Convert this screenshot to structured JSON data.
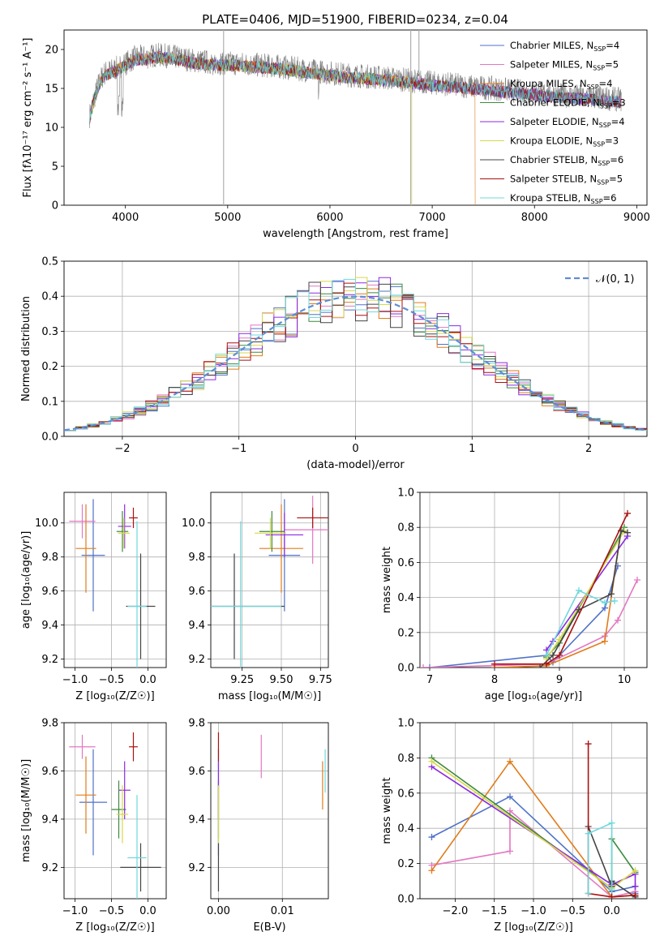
{
  "title": "PLATE=0406, MJD=51900, FIBERID=0234, z=0.04",
  "models": [
    {
      "label": "Chabrier MILES, N",
      "sub": "SSP",
      "suffix": "=4",
      "color": "#4f72c9"
    },
    {
      "label": "Salpeter MILES, N",
      "sub": "SSP",
      "suffix": "=5",
      "color": "#e377c2"
    },
    {
      "label": "Kroupa MILES, N",
      "sub": "SSP",
      "suffix": "=4",
      "color": "#e07b1a"
    },
    {
      "label": "Chabrier ELODIE, N",
      "sub": "SSP",
      "suffix": "=3",
      "color": "#3d8a3d"
    },
    {
      "label": "Salpeter ELODIE, N",
      "sub": "SSP",
      "suffix": "=4",
      "color": "#8a2be2"
    },
    {
      "label": "Kroupa ELODIE, N",
      "sub": "SSP",
      "suffix": "=3",
      "color": "#d8d84a"
    },
    {
      "label": "Chabrier STELIB, N",
      "sub": "SSP",
      "suffix": "=6",
      "color": "#444444"
    },
    {
      "label": "Salpeter STELIB, N",
      "sub": "SSP",
      "suffix": "=5",
      "color": "#aa1111"
    },
    {
      "label": "Kroupa STELIB, N",
      "sub": "SSP",
      "suffix": "=6",
      "color": "#6fd8dc"
    }
  ],
  "chart_data": [
    {
      "id": "spectrum",
      "type": "line",
      "xlabel": "wavelength [Angstrom, rest frame]",
      "ylabel": "Flux [fλ10⁻¹⁷ erg cm⁻² s⁻¹ A⁻¹]",
      "xlim": [
        3400,
        9100
      ],
      "ylim": [
        0,
        22.5
      ],
      "xticks": [
        4000,
        5000,
        6000,
        7000,
        8000,
        9000
      ],
      "yticks": [
        0,
        5,
        10,
        15,
        20
      ],
      "data_color": "#808080",
      "data_envelope": {
        "x": [
          3650,
          3700,
          3750,
          3800,
          3900,
          4000,
          4100,
          4200,
          4300,
          4400,
          4500,
          4700,
          4900,
          5100,
          5300,
          5500,
          5800,
          6000,
          6200,
          6400,
          6600,
          6800,
          7000,
          7200,
          7400,
          7600,
          7800,
          8000,
          8200,
          8400,
          8600,
          8800
        ],
        "y": [
          11.5,
          14,
          16,
          17,
          17.5,
          18.2,
          19,
          19,
          19.3,
          19.2,
          19,
          18.5,
          18.3,
          18.2,
          18,
          17.8,
          17.3,
          17,
          16.7,
          16.5,
          16.3,
          16,
          15.7,
          15.5,
          15.2,
          15,
          14.7,
          14.5,
          14.2,
          14,
          13.8,
          13.6
        ]
      },
      "model_drops": [
        {
          "model": "Kroupa MILES",
          "x_end": 7420
        },
        {
          "model": "Kroupa ELODIE",
          "x_end": 6800
        }
      ],
      "legend_position": "top-right"
    },
    {
      "id": "residuals",
      "type": "histogram",
      "xlabel": "(data-model)/error",
      "ylabel": "Normed distribution",
      "xlim": [
        -2.5,
        2.5
      ],
      "ylim": [
        0,
        0.5
      ],
      "xticks": [
        -2,
        -1,
        0,
        1,
        2
      ],
      "yticks": [
        0.0,
        0.1,
        0.2,
        0.3,
        0.4,
        0.5
      ],
      "bin_width": 0.1,
      "reference": {
        "label": "𝒩(0, 1)",
        "color": "#5f8dd3",
        "mean": 0,
        "sigma": 1
      },
      "legend_position": "top-right"
    },
    {
      "id": "age_vs_Z",
      "type": "errorbar",
      "xlabel": "Z [log₁₀(Z/Z☉)]",
      "ylabel": "age  [log₁₀(age/yr)]",
      "xlim": [
        -1.15,
        0.25
      ],
      "ylim": [
        9.15,
        10.18
      ],
      "xticks": [
        -1.0,
        -0.5,
        0.0
      ],
      "yticks": [
        9.2,
        9.4,
        9.6,
        9.8,
        10.0
      ],
      "points": [
        {
          "model": "Chabrier MILES",
          "x": -0.75,
          "xerr": 0.16,
          "y": 9.81,
          "yerr": 0.33
        },
        {
          "model": "Salpeter MILES",
          "x": -0.9,
          "xerr": 0.18,
          "y": 10.01,
          "yerr": 0.1
        },
        {
          "model": "Kroupa MILES",
          "x": -0.85,
          "xerr": 0.14,
          "y": 9.85,
          "yerr": 0.26
        },
        {
          "model": "Chabrier ELODIE",
          "x": -0.35,
          "xerr": 0.08,
          "y": 9.95,
          "yerr": 0.12
        },
        {
          "model": "Salpeter ELODIE",
          "x": -0.32,
          "xerr": 0.09,
          "y": 9.98,
          "yerr": 0.13
        },
        {
          "model": "Kroupa ELODIE",
          "x": -0.33,
          "xerr": 0.08,
          "y": 9.94,
          "yerr": 0.09
        },
        {
          "model": "Chabrier STELIB",
          "x": -0.1,
          "xerr": 0.2,
          "y": 9.51,
          "yerr": 0.31
        },
        {
          "model": "Salpeter STELIB",
          "x": -0.2,
          "xerr": 0.06,
          "y": 10.03,
          "yerr": 0.06
        },
        {
          "model": "Kroupa STELIB",
          "x": -0.15,
          "xerr": 0.13,
          "y": 9.51,
          "yerr": 0.5
        }
      ]
    },
    {
      "id": "age_vs_mass",
      "type": "errorbar",
      "xlabel": "mass [log₁₀(M/M☉)]",
      "ylabel": "",
      "xlim": [
        9.05,
        9.8
      ],
      "ylim": [
        9.15,
        10.18
      ],
      "xticks": [
        9.25,
        9.5,
        9.75
      ],
      "yticks": [
        9.2,
        9.4,
        9.6,
        9.8,
        10.0
      ],
      "points": [
        {
          "model": "Chabrier MILES",
          "x": 9.52,
          "xerr": 0.1,
          "y": 9.81,
          "yerr": 0.33
        },
        {
          "model": "Salpeter MILES",
          "x": 9.7,
          "xerr": 0.18,
          "y": 9.96,
          "yerr": 0.2
        },
        {
          "model": "Kroupa MILES",
          "x": 9.5,
          "xerr": 0.14,
          "y": 9.85,
          "yerr": 0.26
        },
        {
          "model": "Chabrier ELODIE",
          "x": 9.44,
          "xerr": 0.08,
          "y": 9.95,
          "yerr": 0.12
        },
        {
          "model": "Salpeter ELODIE",
          "x": 9.52,
          "xerr": 0.12,
          "y": 9.93,
          "yerr": 0.13
        },
        {
          "model": "Kroupa ELODIE",
          "x": 9.43,
          "xerr": 0.1,
          "y": 9.94,
          "yerr": 0.09
        },
        {
          "model": "Chabrier STELIB",
          "x": 9.2,
          "xerr": 0.32,
          "y": 9.51,
          "yerr": 0.31
        },
        {
          "model": "Salpeter STELIB",
          "x": 9.7,
          "xerr": 0.1,
          "y": 10.03,
          "yerr": 0.06
        },
        {
          "model": "Kroupa STELIB",
          "x": 9.24,
          "xerr": 0.26,
          "y": 9.51,
          "yerr": 0.5
        }
      ]
    },
    {
      "id": "weight_vs_age",
      "type": "line",
      "xlabel": "age  [log₁₀(age/yr)]",
      "ylabel": "mass weight",
      "xlim": [
        6.85,
        10.35
      ],
      "ylim": [
        0,
        1.0
      ],
      "xticks": [
        7,
        8,
        9,
        10
      ],
      "yticks": [
        0.0,
        0.2,
        0.4,
        0.6,
        0.8,
        1.0
      ],
      "series": [
        {
          "model": "Chabrier MILES",
          "x": [
            7.0,
            8.8,
            8.9,
            9.7,
            9.9
          ],
          "y": [
            0.0,
            0.07,
            0.03,
            0.34,
            0.58
          ]
        },
        {
          "model": "Salpeter MILES",
          "x": [
            6.9,
            8.8,
            9.7,
            9.9,
            10.2
          ],
          "y": [
            0.0,
            0.02,
            0.18,
            0.27,
            0.5
          ]
        },
        {
          "model": "Kroupa MILES",
          "x": [
            8.0,
            8.8,
            9.7,
            9.95
          ],
          "y": [
            0.0,
            0.01,
            0.15,
            0.78
          ]
        },
        {
          "model": "Chabrier ELODIE",
          "x": [
            8.8,
            9.0,
            10.0
          ],
          "y": [
            0.06,
            0.14,
            0.8
          ]
        },
        {
          "model": "Salpeter ELODIE",
          "x": [
            8.8,
            8.9,
            10.05
          ],
          "y": [
            0.1,
            0.15,
            0.75
          ]
        },
        {
          "model": "Kroupa ELODIE",
          "x": [
            8.8,
            9.0,
            10.0
          ],
          "y": [
            0.05,
            0.16,
            0.78
          ]
        },
        {
          "model": "Chabrier STELIB",
          "x": [
            8.7,
            8.9,
            9.3,
            9.8,
            9.95,
            10.05
          ],
          "y": [
            0.0,
            0.07,
            0.33,
            0.42,
            0.78,
            0.77
          ]
        },
        {
          "model": "Salpeter STELIB",
          "x": [
            8.0,
            8.8,
            9.0,
            10.05
          ],
          "y": [
            0.02,
            0.02,
            0.07,
            0.88
          ]
        },
        {
          "model": "Kroupa STELIB",
          "x": [
            8.8,
            9.3,
            9.7,
            9.85
          ],
          "y": [
            0.07,
            0.44,
            0.37,
            0.38
          ]
        }
      ]
    },
    {
      "id": "mass_vs_Z",
      "type": "errorbar",
      "xlabel": "Z [log₁₀(Z/Z☉)]",
      "ylabel": "mass [log₁₀(M/M☉)]",
      "xlim": [
        -1.15,
        0.25
      ],
      "ylim": [
        9.07,
        9.8
      ],
      "xticks": [
        -1.0,
        -0.5,
        0.0
      ],
      "yticks": [
        9.2,
        9.4,
        9.6,
        9.8
      ],
      "points": [
        {
          "model": "Chabrier MILES",
          "x": -0.75,
          "xerr": 0.19,
          "y": 9.47,
          "yerr": 0.22
        },
        {
          "model": "Salpeter MILES",
          "x": -0.9,
          "xerr": 0.18,
          "y": 9.7,
          "yerr": 0.05
        },
        {
          "model": "Kroupa MILES",
          "x": -0.85,
          "xerr": 0.14,
          "y": 9.5,
          "yerr": 0.16
        },
        {
          "model": "Chabrier ELODIE",
          "x": -0.4,
          "xerr": 0.1,
          "y": 9.44,
          "yerr": 0.12
        },
        {
          "model": "Salpeter ELODIE",
          "x": -0.32,
          "xerr": 0.08,
          "y": 9.52,
          "yerr": 0.12
        },
        {
          "model": "Kroupa ELODIE",
          "x": -0.35,
          "xerr": 0.08,
          "y": 9.42,
          "yerr": 0.12
        },
        {
          "model": "Chabrier STELIB",
          "x": -0.1,
          "xerr": 0.28,
          "y": 9.2,
          "yerr": 0.1
        },
        {
          "model": "Salpeter STELIB",
          "x": -0.2,
          "xerr": 0.06,
          "y": 9.7,
          "yerr": 0.06
        },
        {
          "model": "Kroupa STELIB",
          "x": -0.15,
          "xerr": 0.13,
          "y": 9.24,
          "yerr": 0.26
        }
      ]
    },
    {
      "id": "mass_vs_ebv",
      "type": "errorbar",
      "xlabel": "E(B-V)",
      "ylabel": "",
      "xlim": [
        -0.0012,
        0.0172
      ],
      "ylim": [
        9.07,
        9.8
      ],
      "xticks": [
        0.0,
        0.01
      ],
      "yticks": [
        9.2,
        9.4,
        9.6,
        9.8
      ],
      "points": [
        {
          "model": "Chabrier MILES",
          "x": 0.0,
          "xerr": 0,
          "y": 9.47,
          "yerr": 0.22
        },
        {
          "model": "Salpeter MILES",
          "x": 0.0067,
          "xerr": 0,
          "y": 9.66,
          "yerr": 0.09
        },
        {
          "model": "Kroupa MILES",
          "x": 0.0163,
          "xerr": 0,
          "y": 9.54,
          "yerr": 0.1
        },
        {
          "model": "Chabrier ELODIE",
          "x": 0.0,
          "xerr": 0,
          "y": 9.44,
          "yerr": 0.12
        },
        {
          "model": "Salpeter ELODIE",
          "x": 0.0,
          "xerr": 0,
          "y": 9.52,
          "yerr": 0.12
        },
        {
          "model": "Kroupa ELODIE",
          "x": 0.0,
          "xerr": 0,
          "y": 9.42,
          "yerr": 0.12
        },
        {
          "model": "Chabrier STELIB",
          "x": 0.0,
          "xerr": 0,
          "y": 9.2,
          "yerr": 0.1
        },
        {
          "model": "Salpeter STELIB",
          "x": 0.0,
          "xerr": 0,
          "y": 9.7,
          "yerr": 0.06
        },
        {
          "model": "Kroupa STELIB",
          "x": 0.0167,
          "xerr": 0,
          "y": 9.6,
          "yerr": 0.09
        }
      ]
    },
    {
      "id": "weight_vs_Z",
      "type": "line",
      "xlabel": "Z [log₁₀(Z/Z☉)]",
      "ylabel": "mass weight",
      "xlim": [
        -2.45,
        0.45
      ],
      "ylim": [
        0,
        1.0
      ],
      "xticks": [
        -2.0,
        -1.5,
        -1.0,
        -0.5,
        0.0
      ],
      "yticks": [
        0.0,
        0.2,
        0.4,
        0.6,
        0.8,
        1.0
      ],
      "series": [
        {
          "model": "Chabrier MILES",
          "x": [
            -2.3,
            -1.3,
            0.0,
            0.3,
            0.3
          ],
          "y": [
            0.35,
            0.58,
            0.04,
            0.07,
            0.03
          ]
        },
        {
          "model": "Salpeter MILES",
          "x": [
            -2.3,
            -1.3,
            -1.3,
            0.0,
            0.3
          ],
          "y": [
            0.19,
            0.27,
            0.5,
            0.01,
            0.04
          ]
        },
        {
          "model": "Kroupa MILES",
          "x": [
            -2.3,
            -1.3,
            0.0,
            0.3
          ],
          "y": [
            0.16,
            0.78,
            0.01,
            0.02
          ]
        },
        {
          "model": "Chabrier ELODIE",
          "x": [
            -2.3,
            0.0,
            0.0,
            0.3
          ],
          "y": [
            0.8,
            0.06,
            0.34,
            0.15
          ]
        },
        {
          "model": "Salpeter ELODIE",
          "x": [
            -2.3,
            0.0,
            0.3,
            0.3
          ],
          "y": [
            0.75,
            0.08,
            0.14,
            0.07
          ]
        },
        {
          "model": "Kroupa ELODIE",
          "x": [
            -2.3,
            0.0,
            0.3
          ],
          "y": [
            0.78,
            0.06,
            0.16
          ]
        },
        {
          "model": "Chabrier STELIB",
          "x": [
            -0.3,
            0.0,
            0.0,
            0.3
          ],
          "y": [
            0.41,
            0.07,
            0.1,
            0.01
          ]
        },
        {
          "model": "Salpeter STELIB",
          "x": [
            -0.3,
            -0.3,
            0.0,
            0.3
          ],
          "y": [
            0.88,
            0.03,
            0.01,
            0.02
          ]
        },
        {
          "model": "Kroupa STELIB",
          "x": [
            -0.3,
            -0.3,
            0.0,
            0.0
          ],
          "y": [
            0.03,
            0.37,
            0.43,
            0.05
          ]
        }
      ]
    }
  ]
}
